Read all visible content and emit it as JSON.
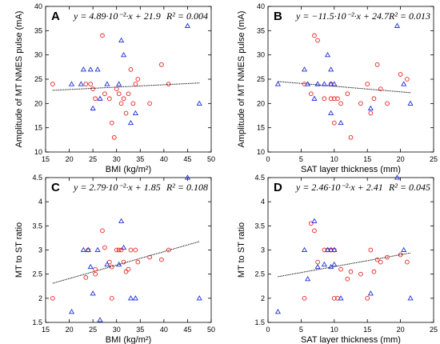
{
  "figure": {
    "series_colors": {
      "circles": "#e8201c",
      "triangles": "#1f2fd6",
      "fit": "#000000"
    }
  },
  "chart_data": [
    {
      "type": "scatter",
      "panel_label": "A",
      "equation": "y = 4.89·10⁻²·x + 21.9",
      "r2": "R² = 0.004",
      "xlabel": "BMI (kg/m²)",
      "ylabel": "Amplitude of MT NMES pulse (mA)",
      "xlim": [
        15,
        50
      ],
      "ylim": [
        10,
        40
      ],
      "xticks": [
        15,
        20,
        25,
        30,
        35,
        40,
        45,
        50
      ],
      "yticks": [
        10,
        15,
        20,
        25,
        30,
        35,
        40
      ],
      "fit": {
        "slope": 0.0489,
        "intercept": 21.9,
        "x_range": [
          16.5,
          47.5
        ]
      },
      "series": [
        {
          "marker": "circle",
          "points": [
            [
              16.5,
              24
            ],
            [
              23.5,
              24
            ],
            [
              24.5,
              24
            ],
            [
              25,
              23
            ],
            [
              25.5,
              21
            ],
            [
              27,
              34
            ],
            [
              27.5,
              22
            ],
            [
              28.5,
              21
            ],
            [
              29,
              16
            ],
            [
              29.5,
              13
            ],
            [
              30,
              23
            ],
            [
              30.5,
              22
            ],
            [
              31,
              20
            ],
            [
              31.5,
              21
            ],
            [
              32,
              18
            ],
            [
              32.5,
              22
            ],
            [
              33,
              27
            ],
            [
              33.5,
              20
            ],
            [
              34,
              24
            ],
            [
              34.5,
              25
            ],
            [
              37,
              20
            ],
            [
              39.5,
              28
            ],
            [
              41,
              24
            ]
          ]
        },
        {
          "marker": "triangle",
          "points": [
            [
              20.5,
              24
            ],
            [
              22.5,
              24
            ],
            [
              23,
              27
            ],
            [
              24.5,
              27
            ],
            [
              25,
              19
            ],
            [
              26,
              27
            ],
            [
              26.5,
              21
            ],
            [
              28,
              24
            ],
            [
              30.5,
              24
            ],
            [
              31,
              33
            ],
            [
              31.5,
              30
            ],
            [
              33,
              16
            ],
            [
              34,
              18
            ],
            [
              45,
              36
            ],
            [
              47.5,
              20
            ]
          ]
        }
      ]
    },
    {
      "type": "scatter",
      "panel_label": "B",
      "equation": "y = −11.5·10⁻²·x + 24.7",
      "r2": "R² = 0.013",
      "xlabel": "SAT layer thickness (mm)",
      "ylabel": "Amplitude of MT NMES pulse (mA)",
      "xlim": [
        0,
        25
      ],
      "ylim": [
        10,
        40
      ],
      "xticks": [
        0,
        5,
        10,
        15,
        20,
        25
      ],
      "yticks": [
        10,
        15,
        20,
        25,
        30,
        35,
        40
      ],
      "fit": {
        "slope": -0.115,
        "intercept": 24.7,
        "x_range": [
          1.5,
          21.5
        ]
      },
      "series": [
        {
          "marker": "circle",
          "points": [
            [
              5.5,
              24
            ],
            [
              6.5,
              22
            ],
            [
              7,
              34
            ],
            [
              7.5,
              33
            ],
            [
              8.5,
              21
            ],
            [
              9.5,
              21
            ],
            [
              9.5,
              24
            ],
            [
              10,
              21
            ],
            [
              10,
              16
            ],
            [
              10.5,
              21
            ],
            [
              11,
              20
            ],
            [
              12,
              22
            ],
            [
              12.5,
              13
            ],
            [
              14,
              20
            ],
            [
              15,
              24
            ],
            [
              15.5,
              18
            ],
            [
              16,
              21
            ],
            [
              16.5,
              28
            ],
            [
              17,
              23
            ],
            [
              18,
              20
            ],
            [
              20,
              26
            ],
            [
              21,
              25
            ]
          ]
        },
        {
          "marker": "triangle",
          "points": [
            [
              1.5,
              24
            ],
            [
              5.5,
              27
            ],
            [
              6,
              24
            ],
            [
              7,
              21
            ],
            [
              7.5,
              24
            ],
            [
              8.5,
              24
            ],
            [
              9,
              30
            ],
            [
              9.5,
              27
            ],
            [
              9.5,
              18
            ],
            [
              9.5,
              24
            ],
            [
              10,
              24
            ],
            [
              11,
              16
            ],
            [
              15.5,
              19
            ],
            [
              19.5,
              36
            ],
            [
              20.5,
              24
            ],
            [
              21.5,
              20
            ]
          ]
        }
      ]
    },
    {
      "type": "scatter",
      "panel_label": "C",
      "equation": "y = 2.79·10⁻²·x + 1.85",
      "r2": "R² = 0.108",
      "xlabel": "BMI (kg/m²)",
      "ylabel": "MT to ST ratio",
      "xlim": [
        15,
        50
      ],
      "ylim": [
        1.5,
        4.5
      ],
      "xticks": [
        15,
        20,
        25,
        30,
        35,
        40,
        45,
        50
      ],
      "yticks": [
        1.5,
        2,
        2.5,
        3,
        3.5,
        4,
        4.5
      ],
      "fit": {
        "slope": 0.0279,
        "intercept": 1.85,
        "x_range": [
          16.5,
          47.5
        ]
      },
      "series": [
        {
          "marker": "circle",
          "points": [
            [
              16.5,
              2.0
            ],
            [
              23.5,
              2.43
            ],
            [
              24,
              3.0
            ],
            [
              25.5,
              2.6
            ],
            [
              25.5,
              2.5
            ],
            [
              27,
              3.4
            ],
            [
              27.5,
              3.05
            ],
            [
              28.5,
              2.75
            ],
            [
              29,
              2.0
            ],
            [
              29,
              2.65
            ],
            [
              30,
              3.0
            ],
            [
              30.5,
              3.0
            ],
            [
              31,
              3.0
            ],
            [
              31.5,
              2.75
            ],
            [
              32,
              2.55
            ],
            [
              32.5,
              2.6
            ],
            [
              33,
              3.0
            ],
            [
              34,
              3.0
            ],
            [
              34.5,
              2.75
            ],
            [
              37,
              2.85
            ],
            [
              39.5,
              2.8
            ],
            [
              41,
              3.0
            ]
          ]
        },
        {
          "marker": "triangle",
          "points": [
            [
              20.5,
              1.72
            ],
            [
              23,
              3.0
            ],
            [
              24,
              3.0
            ],
            [
              24.5,
              2.65
            ],
            [
              25,
              2.1
            ],
            [
              26,
              3.0
            ],
            [
              26.5,
              1.55
            ],
            [
              28,
              2.7
            ],
            [
              30.5,
              2.7
            ],
            [
              31,
              3.6
            ],
            [
              31.5,
              3.05
            ],
            [
              33,
              2.0
            ],
            [
              34,
              2.0
            ],
            [
              45,
              4.5
            ],
            [
              47.5,
              2.0
            ]
          ]
        }
      ]
    },
    {
      "type": "scatter",
      "panel_label": "D",
      "equation": "y = 2.46·10⁻²·x + 2.41",
      "r2": "R² = 0.045",
      "xlabel": "SAT layer thickness (mm)",
      "ylabel": "MT to ST ratio",
      "xlim": [
        0,
        25
      ],
      "ylim": [
        1.5,
        4.5
      ],
      "xticks": [
        0,
        5,
        10,
        15,
        20,
        25
      ],
      "yticks": [
        1.5,
        2,
        2.5,
        3,
        3.5,
        4,
        4.5
      ],
      "fit": {
        "slope": 0.0246,
        "intercept": 2.41,
        "x_range": [
          1.5,
          21.5
        ]
      },
      "series": [
        {
          "marker": "circle",
          "points": [
            [
              5.5,
              2.0
            ],
            [
              6.5,
              3.55
            ],
            [
              7,
              3.4
            ],
            [
              7.5,
              2.75
            ],
            [
              8.5,
              3.0
            ],
            [
              9,
              3.0
            ],
            [
              9.5,
              3.0
            ],
            [
              10,
              2.0
            ],
            [
              10,
              3.0
            ],
            [
              10.5,
              2.0
            ],
            [
              11,
              2.6
            ],
            [
              12,
              2.4
            ],
            [
              12.5,
              2.55
            ],
            [
              14,
              2.5
            ],
            [
              15,
              2.0
            ],
            [
              15.5,
              3.0
            ],
            [
              16,
              2.55
            ],
            [
              16.5,
              2.8
            ],
            [
              17,
              2.75
            ],
            [
              18,
              2.85
            ],
            [
              20,
              2.9
            ],
            [
              21,
              2.75
            ]
          ]
        },
        {
          "marker": "triangle",
          "points": [
            [
              1.5,
              1.72
            ],
            [
              5.5,
              3.0
            ],
            [
              6,
              2.4
            ],
            [
              7,
              3.6
            ],
            [
              7.5,
              2.65
            ],
            [
              8.5,
              2.7
            ],
            [
              9,
              3.0
            ],
            [
              9.5,
              3.0
            ],
            [
              9.5,
              2.65
            ],
            [
              10,
              3.0
            ],
            [
              10,
              2.7
            ],
            [
              11,
              2.0
            ],
            [
              15.5,
              2.1
            ],
            [
              19.5,
              4.5
            ],
            [
              20.5,
              3.0
            ],
            [
              21.5,
              2.0
            ]
          ]
        }
      ]
    }
  ]
}
